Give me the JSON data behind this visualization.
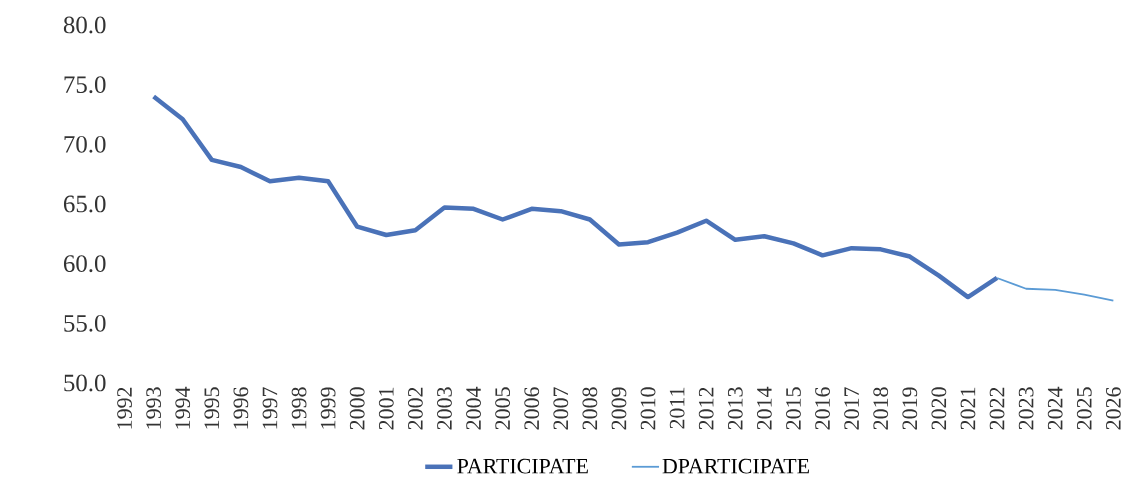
{
  "chart_data": {
    "type": "line",
    "categories": [
      "1992",
      "1993",
      "1994",
      "1995",
      "1996",
      "1997",
      "1998",
      "1999",
      "2000",
      "2001",
      "2002",
      "2003",
      "2004",
      "2005",
      "2006",
      "2007",
      "2008",
      "2009",
      "2010",
      "2011",
      "2012",
      "2013",
      "2014",
      "2015",
      "2016",
      "2017",
      "2018",
      "2019",
      "2020",
      "2021",
      "2022",
      "2023",
      "2024",
      "2025",
      "2026"
    ],
    "series": [
      {
        "name": "PARTICIPATE",
        "color": "#4a72b8",
        "values": [
          null,
          74.0,
          72.1,
          68.7,
          68.1,
          66.9,
          67.2,
          66.9,
          63.1,
          62.4,
          62.8,
          64.7,
          64.6,
          63.7,
          64.6,
          64.4,
          63.7,
          61.6,
          61.8,
          62.6,
          63.6,
          62.0,
          62.3,
          61.7,
          60.7,
          61.3,
          61.2,
          60.6,
          59.0,
          57.2,
          58.8,
          null,
          null,
          null,
          null
        ]
      },
      {
        "name": "DPARTICIPATE",
        "color": "#5b9bd5",
        "values": [
          null,
          null,
          null,
          null,
          null,
          null,
          null,
          null,
          null,
          null,
          null,
          null,
          null,
          null,
          null,
          null,
          null,
          null,
          null,
          null,
          null,
          null,
          null,
          null,
          null,
          null,
          null,
          null,
          null,
          null,
          58.8,
          57.9,
          57.8,
          57.4,
          56.9
        ]
      }
    ],
    "ylim": [
      50,
      80
    ],
    "yticks": [
      {
        "value": 50,
        "label": "50.0"
      },
      {
        "value": 55,
        "label": "55.0"
      },
      {
        "value": 60,
        "label": "60.0"
      },
      {
        "value": 65,
        "label": "65.0"
      },
      {
        "value": 70,
        "label": "70.0"
      },
      {
        "value": 75,
        "label": "75.0"
      },
      {
        "value": 80,
        "label": "80.0"
      }
    ],
    "legend": "bottom",
    "grid": false,
    "marker": "none",
    "line_style": "solid"
  }
}
